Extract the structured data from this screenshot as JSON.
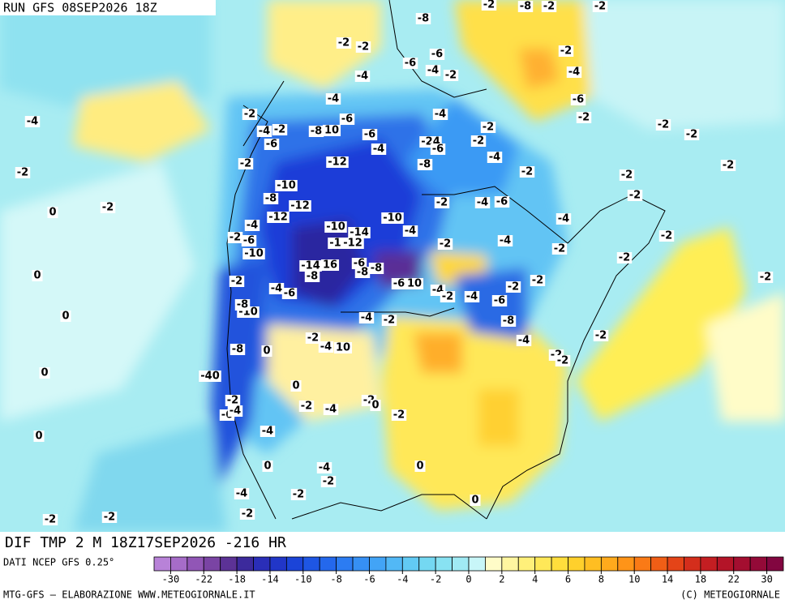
{
  "header": {
    "run": "RUN GFS 08SEP2026 18Z"
  },
  "title": "DIF TMP 2 M 18Z17SEP2026 -216 HR",
  "source": "DATI NCEP GFS 0.25°",
  "footer": {
    "left": "MTG-GFS — ELABORAZIONE WWW.METEOGIORNALE.IT",
    "right": "(C) METEOGIORNALE"
  },
  "colorbar": {
    "colors": [
      "#b882d8",
      "#a66cc8",
      "#9156b6",
      "#7a44a4",
      "#5c3296",
      "#3c2a9c",
      "#2a2eb8",
      "#2136c8",
      "#1b44d8",
      "#1e56e4",
      "#2468ec",
      "#2c7cf2",
      "#3690f4",
      "#42a4f6",
      "#52b8f6",
      "#62caf4",
      "#74d8f2",
      "#88e2f2",
      "#a0eaf4",
      "#c8f6f8",
      "#fffcc8",
      "#fff6a0",
      "#fff07a",
      "#ffe858",
      "#ffde3c",
      "#ffd02c",
      "#ffbe22",
      "#ffaa1c",
      "#ff9418",
      "#fa7a16",
      "#f05e16",
      "#e44418",
      "#d42e1c",
      "#c41e22",
      "#b41428",
      "#a40e30",
      "#940a38",
      "#820640"
    ],
    "ticks": [
      "-30",
      "-22",
      "-18",
      "-14",
      "-10",
      "-8",
      "-6",
      "-4",
      "-2",
      "0",
      "2",
      "4",
      "6",
      "8",
      "10",
      "14",
      "18",
      "22",
      "30"
    ]
  },
  "contour_labels": [
    "-4",
    "-2",
    "0",
    "-2",
    "0",
    "0",
    "0",
    "0",
    "-2",
    "-2",
    "-2",
    "-2",
    "-8",
    "-2",
    "-8",
    "-2",
    "-2",
    "-6",
    "-6",
    "-4",
    "-2",
    "-4",
    "-2",
    "-4",
    "-6",
    "-2",
    "-4",
    "-6",
    "-2",
    "-4",
    "-2",
    "-6",
    "-8",
    "10",
    "-6",
    "-4",
    "-4",
    "-2",
    "-2",
    "-24",
    "-6",
    "-4",
    "-8",
    "-12",
    "-2",
    "-2",
    "-2",
    "-2",
    "-2",
    "-2",
    "-2",
    "-10",
    "-8",
    "-12",
    "-12",
    "-2",
    "-4",
    "-6",
    "-4",
    "-10",
    "-10",
    "-14",
    "-4",
    "-2",
    "-6",
    "-4",
    "-12",
    "-12",
    "-4",
    "-2",
    "-2",
    "-2",
    "-2",
    "-10",
    "-14",
    "16",
    "-6",
    "-8",
    "-8",
    "-8",
    "-2",
    "-4",
    "-6",
    "-6",
    "10",
    "-4",
    "-2",
    "-4",
    "-2",
    "-2",
    "-2",
    "-6",
    "-8",
    "-10",
    "-4",
    "-2",
    "-8",
    "-4",
    "-2",
    "-2",
    "-4",
    "10",
    "-8",
    "0",
    "-2",
    "-2",
    "-40",
    "0",
    "-2",
    "-6",
    "-4",
    "-2",
    "-4",
    "-2",
    "0",
    "-2",
    "-4",
    "0",
    "-4",
    "0",
    "-2",
    "-4",
    "-2",
    "-2",
    "0"
  ]
}
